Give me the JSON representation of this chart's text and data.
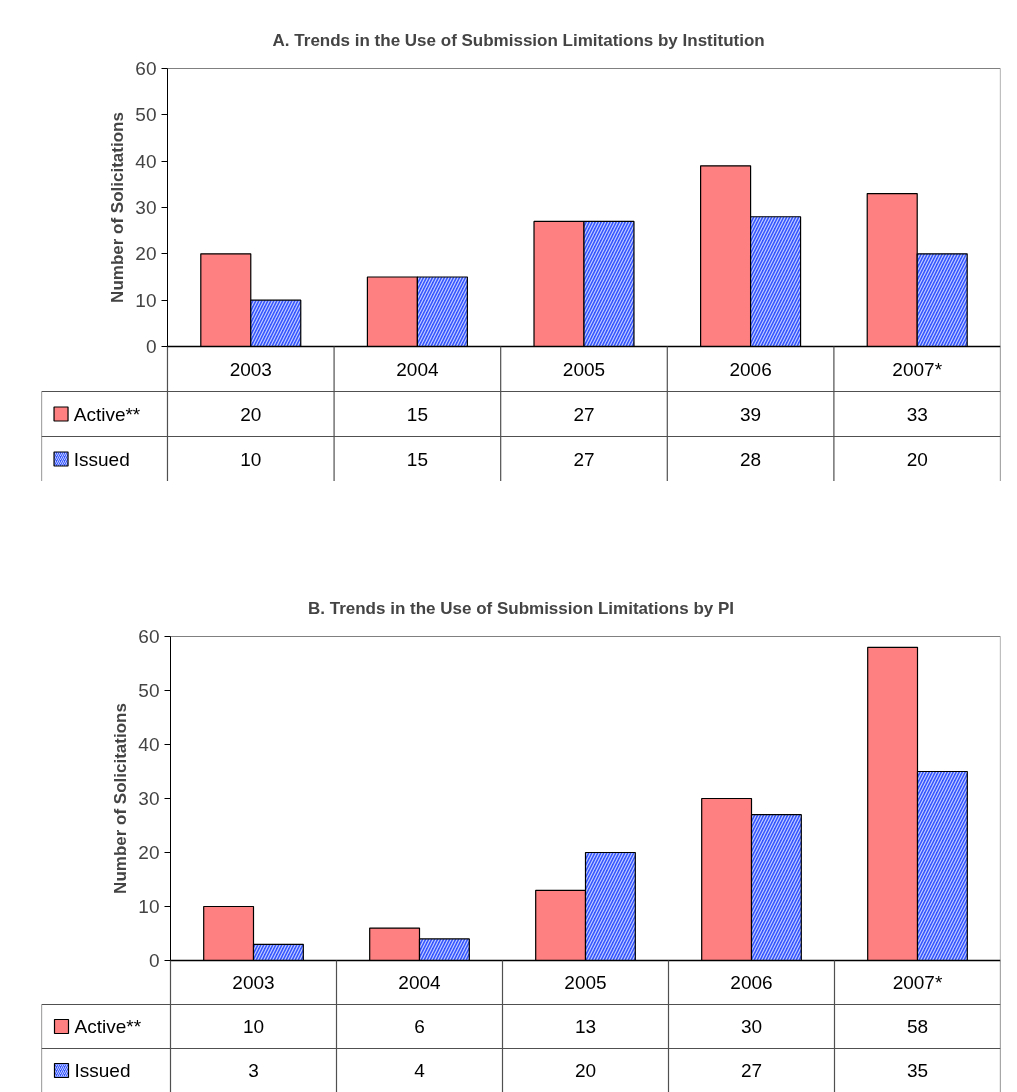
{
  "chart_data": [
    {
      "type": "bar",
      "title": "A.  Trends in the Use of Submission Limitations by Institution",
      "ylabel": "Number of Solicitations",
      "categories": [
        "2003",
        "2004",
        "2005",
        "2006",
        "2007*"
      ],
      "series": [
        {
          "name": "Active**",
          "color": "#ff8080",
          "values": [
            20,
            15,
            27,
            39,
            33
          ]
        },
        {
          "name": "Issued",
          "color": "#3355ff",
          "values": [
            10,
            15,
            27,
            28,
            20
          ]
        }
      ],
      "ylim": [
        0,
        60
      ],
      "yticks": [
        0,
        10,
        20,
        30,
        40,
        50,
        60
      ],
      "data_labels": true,
      "legend": "bottom left"
    },
    {
      "type": "bar",
      "title": "B. Trends in the Use of Submission Limitations by PI",
      "ylabel": "Number of Solicitations",
      "categories": [
        "2003",
        "2004",
        "2005",
        "2006",
        "2007*"
      ],
      "series": [
        {
          "name": "Active**",
          "color": "#ff8080",
          "values": [
            10,
            6,
            13,
            30,
            58
          ]
        },
        {
          "name": "Issued",
          "color": "#3355ff",
          "values": [
            3,
            4,
            20,
            27,
            35
          ]
        }
      ],
      "ylim": [
        0,
        60
      ],
      "yticks": [
        0,
        10,
        20,
        30,
        40,
        50,
        60
      ],
      "data_labels": true,
      "legend": "bottom left"
    }
  ]
}
